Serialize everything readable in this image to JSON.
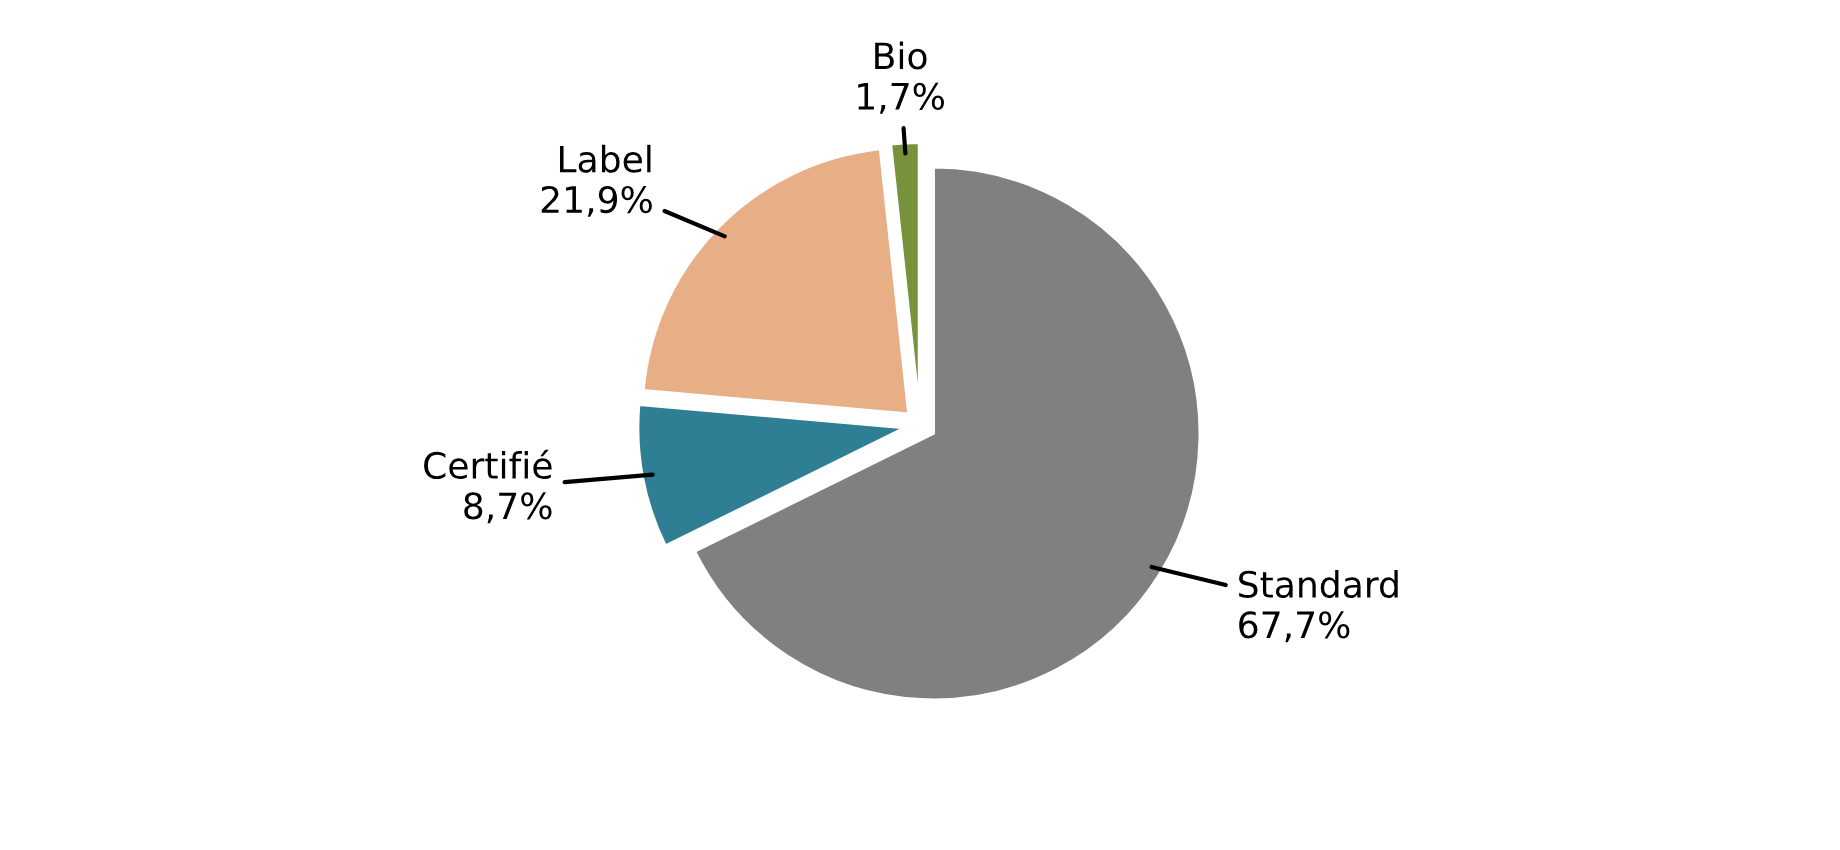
{
  "chart_data": {
    "type": "pie",
    "categories": [
      "Standard",
      "Certifié",
      "Label",
      "Bio"
    ],
    "values": [
      67.7,
      8.7,
      21.9,
      1.7
    ],
    "colors": [
      "#808080",
      "#2e7f93",
      "#e8ae85",
      "#76933c"
    ],
    "value_labels": [
      "67,7%",
      "8,7%",
      "21,9%",
      "1,7%"
    ]
  }
}
